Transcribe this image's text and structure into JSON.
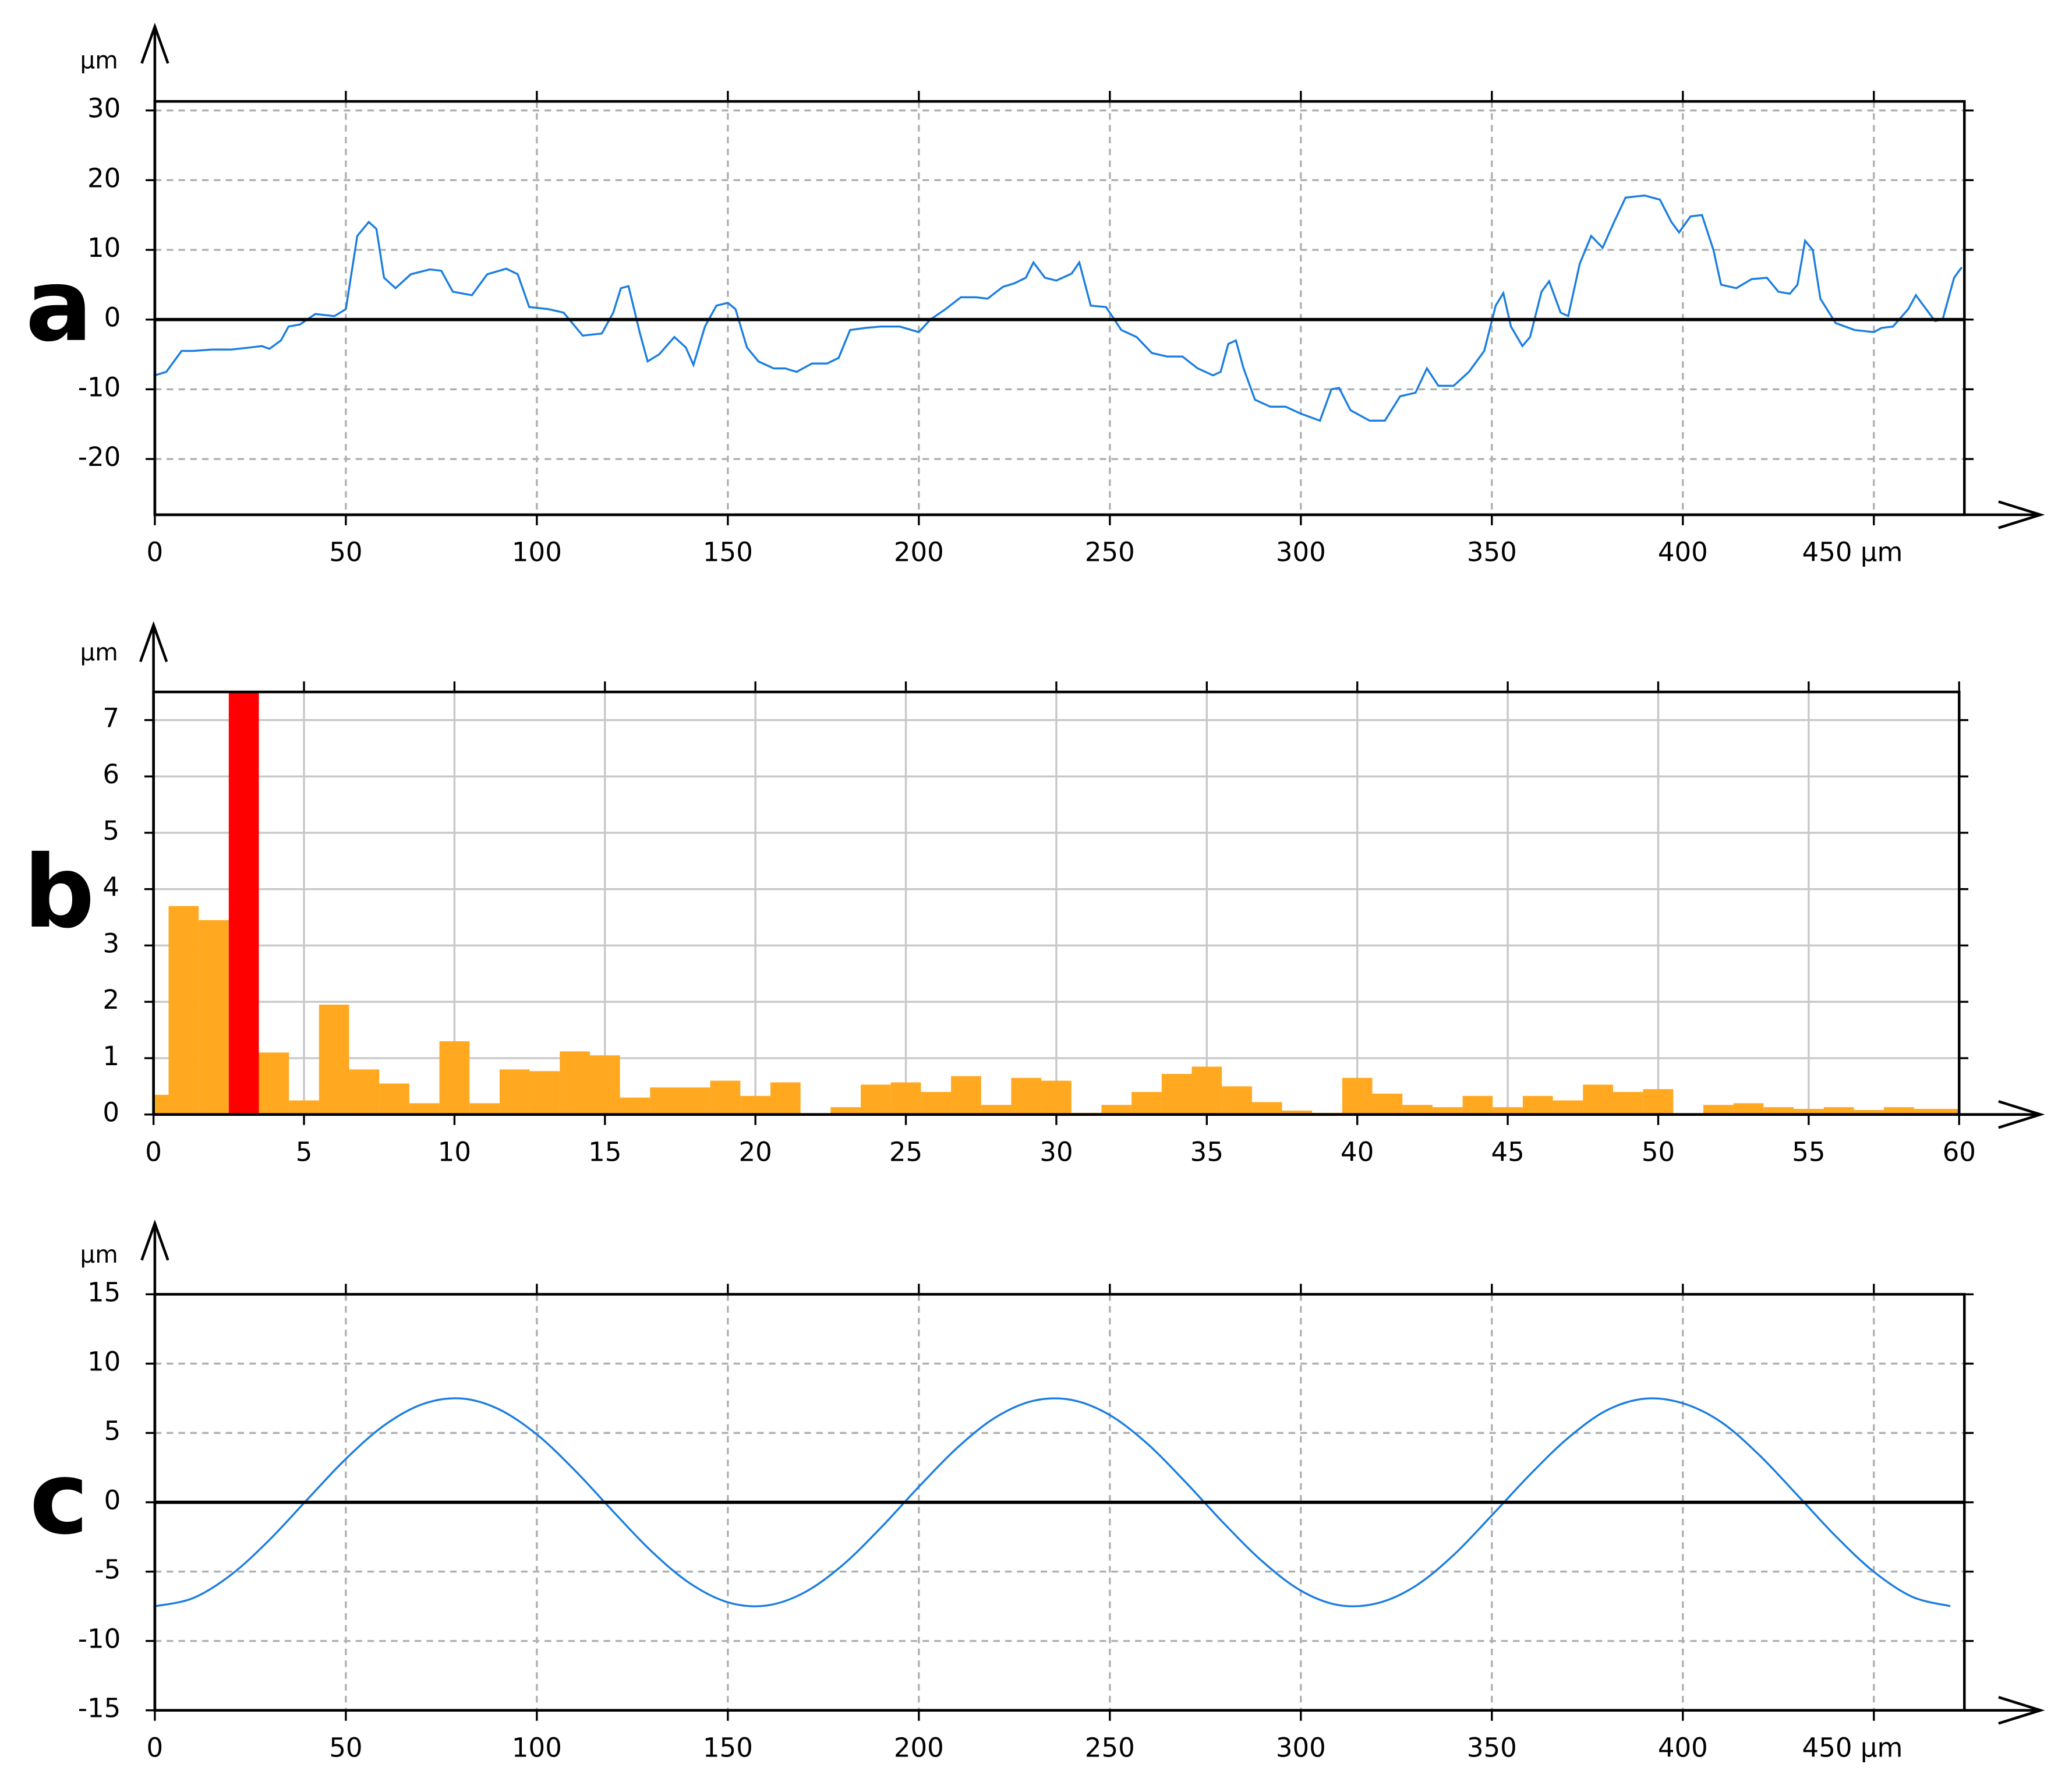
{
  "chart_data": [
    {
      "type": "line",
      "panel_label": "a",
      "y_label": "µm",
      "color": "#1a7ee0",
      "grid": true,
      "grid_style": "dashed",
      "zero_line": true,
      "xlim": [
        0,
        473.7
      ],
      "ylim": [
        -28,
        31.3
      ],
      "xticks": [
        0,
        50,
        100,
        150,
        200,
        250,
        300,
        350,
        400,
        {
          "value": 450,
          "label": "450 µm"
        }
      ],
      "yticks": [
        -20,
        -10,
        0,
        10,
        20,
        30
      ],
      "x": [
        0,
        3,
        7,
        10,
        15,
        20,
        25,
        28,
        30,
        33,
        35,
        38,
        42,
        47,
        50,
        53,
        56,
        58,
        60,
        63,
        67,
        72,
        75,
        78,
        83,
        87,
        92,
        95,
        98,
        103,
        107,
        112,
        117,
        120,
        122,
        124,
        127,
        129,
        132,
        136,
        139,
        141,
        144,
        147,
        150,
        152,
        155,
        158,
        162,
        165,
        168,
        172,
        176,
        179,
        182,
        186,
        190,
        195,
        200,
        203,
        207,
        211,
        215,
        218,
        222,
        225,
        228,
        230,
        233,
        236,
        240,
        242,
        245,
        249,
        253,
        257,
        261,
        265,
        269,
        273,
        277,
        279,
        281,
        283,
        285,
        288,
        292,
        296,
        300,
        305,
        308,
        310,
        313,
        318,
        322,
        326,
        330,
        333,
        336,
        340,
        344,
        348,
        351,
        353,
        355,
        358,
        360,
        363,
        365,
        368,
        370,
        373,
        376,
        379,
        382,
        385,
        390,
        394,
        397,
        399,
        402,
        405,
        408,
        410,
        414,
        418,
        422,
        425,
        428,
        430,
        432,
        434,
        436,
        440,
        445,
        450,
        452,
        455,
        459,
        461,
        463,
        466,
        468,
        471,
        473
      ],
      "values": [
        -8,
        -7.5,
        -4.5,
        -4.5,
        -4.3,
        -4.3,
        -4,
        -3.8,
        -4.2,
        -3,
        -1,
        -0.7,
        0.8,
        0.5,
        1.5,
        12,
        14,
        13,
        6,
        4.5,
        6.5,
        7.2,
        7,
        4,
        3.5,
        6.5,
        7.3,
        6.5,
        1.8,
        1.5,
        1,
        -2.3,
        -2,
        1,
        4.5,
        4.8,
        -2,
        -6,
        -5,
        -2.5,
        -4,
        -6.5,
        -1,
        2,
        2.4,
        1.5,
        -4,
        -6,
        -7,
        -7,
        -7.5,
        -6.3,
        -6.3,
        -5.5,
        -1.5,
        -1.2,
        -1,
        -1,
        -1.8,
        0,
        1.5,
        3.2,
        3.2,
        3,
        4.7,
        5.2,
        6,
        8.2,
        6,
        5.6,
        6.6,
        8.2,
        2,
        1.8,
        -1.5,
        -2.5,
        -4.8,
        -5.3,
        -5.3,
        -7,
        -8,
        -7.5,
        -3.5,
        -3,
        -7,
        -11.5,
        -12.5,
        -12.5,
        -13.5,
        -14.5,
        -10,
        -9.8,
        -13,
        -14.5,
        -14.5,
        -11,
        -10.5,
        -7,
        -9.5,
        -9.5,
        -7.5,
        -4.5,
        2,
        3.8,
        -1,
        -3.8,
        -2.5,
        4,
        5.5,
        1,
        0.5,
        8,
        12,
        10.3,
        14,
        17.5,
        17.8,
        17.2,
        14,
        12.5,
        14.8,
        15,
        10,
        5,
        4.5,
        5.8,
        6,
        4,
        3.7,
        5,
        11.3,
        10,
        3,
        -0.5,
        -1.5,
        -1.8,
        -1.2,
        -1,
        1.5,
        3.5,
        2,
        -0.2,
        0,
        6,
        7.5
      ]
    },
    {
      "type": "bar",
      "panel_label": "b",
      "y_label": "µm",
      "color": "#ffa820",
      "highlight": {
        "index": 3,
        "color": "#ff0000"
      },
      "grid": true,
      "grid_style": "solid",
      "xlim": [
        0,
        60
      ],
      "ylim": [
        0,
        7.5
      ],
      "xticks": [
        0,
        5,
        10,
        15,
        20,
        25,
        30,
        35,
        40,
        45,
        50,
        55,
        60
      ],
      "yticks": [
        0,
        1,
        2,
        3,
        4,
        5,
        6,
        7
      ],
      "x": [
        0,
        1,
        2,
        3,
        4,
        5,
        6,
        7,
        8,
        9,
        10,
        11,
        12,
        13,
        14,
        15,
        16,
        17,
        18,
        19,
        20,
        21,
        22,
        23,
        24,
        25,
        26,
        27,
        28,
        29,
        30,
        31,
        32,
        33,
        34,
        35,
        36,
        37,
        38,
        39,
        40,
        41,
        42,
        43,
        44,
        45,
        46,
        47,
        48,
        49,
        50,
        51,
        52,
        53,
        54,
        55,
        56,
        57,
        58,
        59,
        60
      ],
      "values": [
        0.35,
        3.7,
        3.45,
        7.5,
        1.1,
        0.25,
        1.95,
        0.8,
        0.55,
        0.2,
        1.3,
        0.2,
        0.8,
        0.77,
        1.12,
        1.05,
        0.3,
        0.48,
        0.48,
        0.6,
        0.33,
        0.57,
        0,
        0.13,
        0.53,
        0.57,
        0.4,
        0.68,
        0.17,
        0.65,
        0.6,
        0.03,
        0.17,
        0.4,
        0.72,
        0.85,
        0.5,
        0.22,
        0.07,
        0.03,
        0.65,
        0.37,
        0.17,
        0.13,
        0.33,
        0.13,
        0.33,
        0.25,
        0.53,
        0.4,
        0.45,
        0,
        0.17,
        0.2,
        0.13,
        0.1,
        0.13,
        0.08,
        0.13,
        0.1,
        0.1
      ]
    },
    {
      "type": "line",
      "panel_label": "c",
      "y_label": "µm",
      "color": "#1a7ee0",
      "smooth": true,
      "grid": true,
      "grid_style": "dashed",
      "zero_line": true,
      "xlim": [
        0,
        473.7
      ],
      "ylim": [
        -15,
        15
      ],
      "xticks": [
        0,
        50,
        100,
        150,
        200,
        250,
        300,
        350,
        400,
        {
          "value": 450,
          "label": "450 µm"
        }
      ],
      "yticks": [
        -15,
        -10,
        -5,
        0,
        5,
        10,
        15
      ],
      "x": [
        0,
        10,
        20,
        30,
        40,
        50,
        60,
        70,
        80,
        90,
        100,
        110,
        120,
        130,
        140,
        150,
        160,
        170,
        180,
        190,
        200,
        210,
        220,
        230,
        240,
        250,
        260,
        270,
        280,
        290,
        300,
        310,
        320,
        330,
        340,
        350,
        360,
        370,
        380,
        390,
        400,
        410,
        420,
        430,
        440,
        450,
        460,
        470
      ],
      "values": [
        -7.5,
        -6.91,
        -5.22,
        -2.71,
        0.23,
        3.13,
        5.54,
        7.07,
        7.49,
        6.72,
        4.89,
        2.29,
        -0.67,
        -3.53,
        -5.83,
        -7.21,
        -7.45,
        -6.51,
        -4.54,
        -1.85,
        1.12,
        3.92,
        6.11,
        7.32,
        7.38,
        6.29,
        4.18,
        1.4,
        -1.56,
        -4.28,
        -6.37,
        -7.42,
        -7.28,
        -6.04,
        -3.8,
        -0.94,
        2,
        4.65,
        6.62,
        7.47,
        7.14,
        5.79,
        3.41,
        0.51,
        -2.44,
        -5.01,
        -6.81,
        -7.49
      ]
    }
  ]
}
